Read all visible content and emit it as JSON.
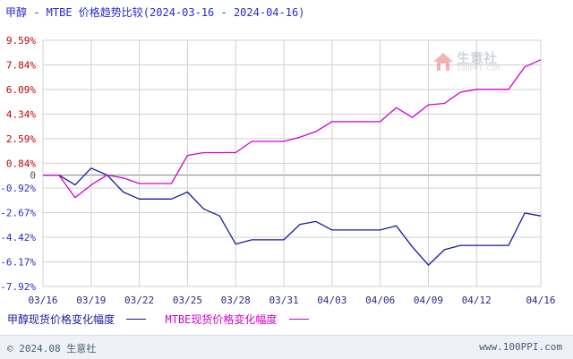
{
  "chart_data": {
    "type": "line",
    "title": "甲醇 - MTBE 价格趋势比较(2024-03-16 - 2024-04-16)",
    "x": [
      "03/16",
      "03/17",
      "03/18",
      "03/19",
      "03/20",
      "03/21",
      "03/22",
      "03/23",
      "03/24",
      "03/25",
      "03/26",
      "03/27",
      "03/28",
      "03/29",
      "03/30",
      "03/31",
      "04/01",
      "04/02",
      "04/03",
      "04/04",
      "04/05",
      "04/06",
      "04/07",
      "04/08",
      "04/09",
      "04/10",
      "04/11",
      "04/12",
      "04/13",
      "04/14",
      "04/15",
      "04/16"
    ],
    "x_tick_labels": [
      "03/16",
      "03/19",
      "03/22",
      "03/25",
      "03/28",
      "03/31",
      "04/03",
      "04/06",
      "04/09",
      "04/12",
      "04/16"
    ],
    "y_tick_labels": [
      "9.59%",
      "7.84%",
      "6.09%",
      "4.34%",
      "2.59%",
      "0.84%",
      "0",
      "-0.92%",
      "-2.67%",
      "-4.42%",
      "-6.17%",
      "-7.92%"
    ],
    "y_tick_values": [
      9.59,
      7.84,
      6.09,
      4.34,
      2.59,
      0.84,
      0,
      -0.92,
      -2.67,
      -4.42,
      -6.17,
      -7.92
    ],
    "ylim": [
      -7.92,
      9.59
    ],
    "grid": true,
    "series": [
      {
        "name": "甲醇现货价格变化幅度",
        "color": "#1a1aa0",
        "values": [
          0,
          0,
          -0.7,
          0.5,
          0,
          -1.2,
          -1.7,
          -1.7,
          -1.7,
          -1.2,
          -2.4,
          -2.9,
          -4.9,
          -4.6,
          -4.6,
          -4.6,
          -3.5,
          -3.3,
          -3.9,
          -3.9,
          -3.9,
          -3.9,
          -3.6,
          -5.1,
          -6.4,
          -5.3,
          -5.0,
          -5.0,
          -5.0,
          -5.0,
          -2.7,
          -2.9
        ]
      },
      {
        "name": "MTBE现货价格变化幅度",
        "color": "#d000d0",
        "values": [
          0,
          0,
          -1.6,
          -0.7,
          0,
          -0.2,
          -0.6,
          -0.6,
          -0.6,
          1.4,
          1.6,
          1.6,
          1.6,
          2.4,
          2.4,
          2.4,
          2.7,
          3.1,
          3.8,
          3.8,
          3.8,
          3.8,
          4.8,
          4.1,
          5.0,
          5.1,
          5.9,
          6.1,
          6.1,
          6.1,
          7.7,
          8.2
        ]
      }
    ]
  },
  "legend": {
    "series1_label": "甲醇现货价格变化幅度",
    "series2_label": "MTBE现货价格变化幅度"
  },
  "footer": {
    "copyright": "© 2024.08 生意社",
    "url": "www.100PPI.com"
  },
  "watermark": {
    "logo_icon": "house-logo-icon",
    "text": "生意社",
    "url": "100PPI.COM"
  }
}
